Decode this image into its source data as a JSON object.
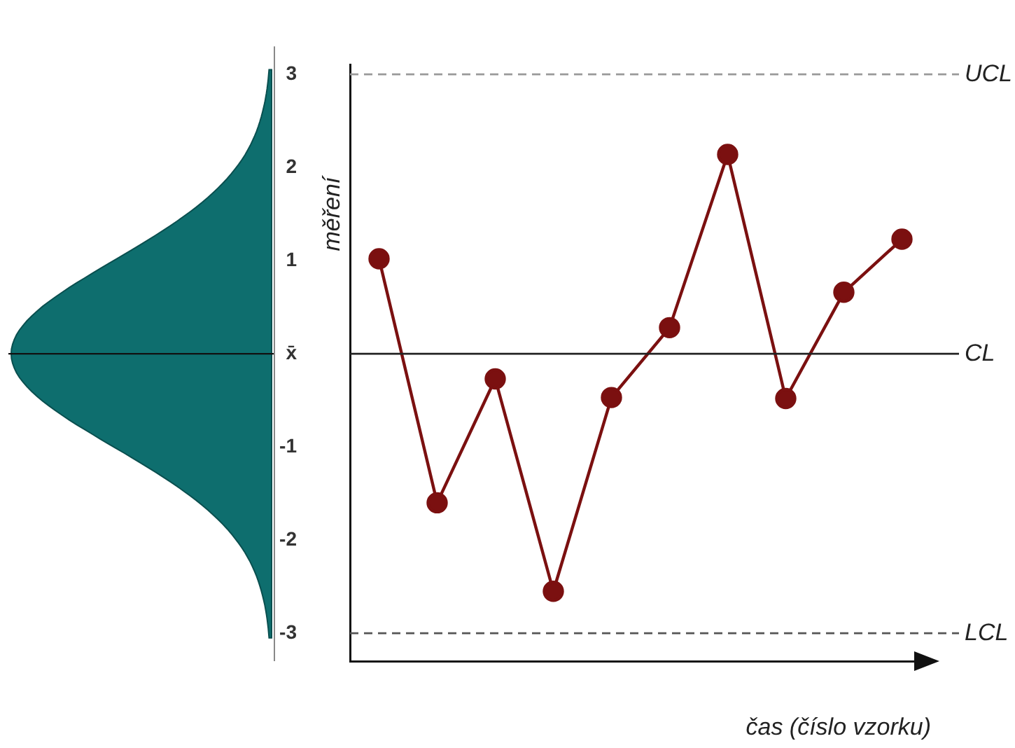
{
  "chart_data": {
    "type": "line",
    "xlabel": "čas (číslo vzorku)",
    "ylabel": "měření",
    "categories": [
      null,
      null,
      null,
      null,
      null,
      null,
      null,
      null,
      null,
      null
    ],
    "series": [
      {
        "color": "#7b1010",
        "values": [
          1.02,
          -1.6,
          -0.27,
          -2.55,
          -0.47,
          0.28,
          2.14,
          -0.48,
          0.66,
          1.23
        ]
      }
    ],
    "ylim": [
      -3.3,
      3.1
    ],
    "yticks": [
      -3,
      -2,
      -1,
      {
        "value": 0,
        "label": "x̄"
      },
      1,
      2,
      3
    ],
    "ref_lines": [
      {
        "axis": "y",
        "value": 3,
        "label": "UCL",
        "color": "#999999",
        "line_style": "dashed"
      },
      {
        "axis": "y",
        "value": 0,
        "label": "CL",
        "color": "#222222",
        "line_style": "solid"
      },
      {
        "axis": "y",
        "value": -3,
        "label": "LCL",
        "color": "#555555",
        "line_style": "dashed"
      }
    ],
    "marker": "circle",
    "line_style": "solid",
    "grid": false,
    "legend": false,
    "tick_labels": "y"
  }
}
